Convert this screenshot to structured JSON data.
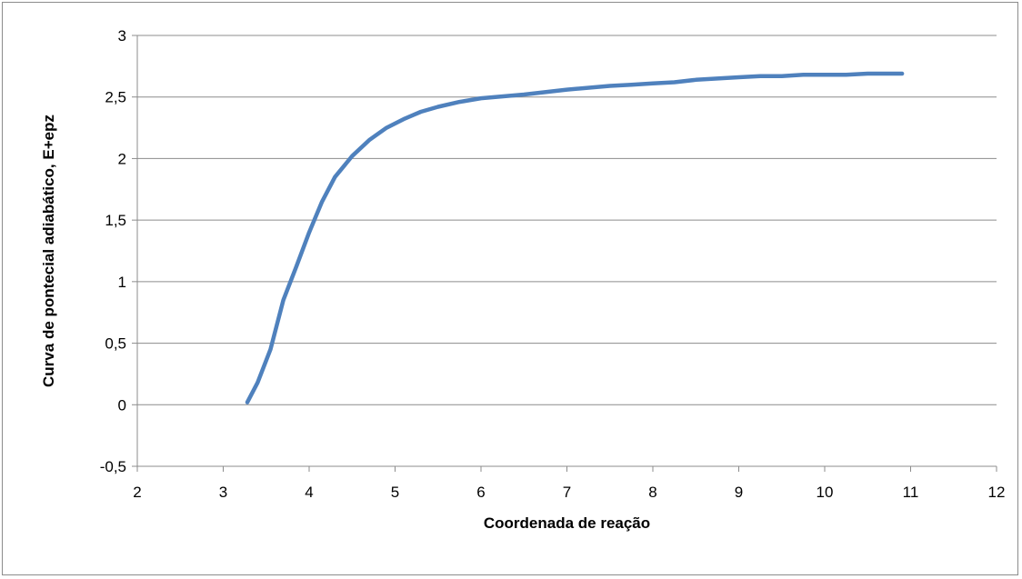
{
  "chart_data": {
    "type": "line",
    "title": "",
    "xlabel": "Coordenada de reação",
    "ylabel": "Curva de pontecial adiabático,  E+epz",
    "xlim": [
      2,
      12
    ],
    "ylim": [
      -0.5,
      3
    ],
    "xticks": [
      2,
      3,
      4,
      5,
      6,
      7,
      8,
      9,
      10,
      11,
      12
    ],
    "xtick_labels": [
      "2",
      "3",
      "4",
      "5",
      "6",
      "7",
      "8",
      "9",
      "10",
      "11",
      "12"
    ],
    "yticks": [
      -0.5,
      0,
      0.5,
      1,
      1.5,
      2,
      2.5,
      3
    ],
    "ytick_labels": [
      "-0,5",
      "0",
      "0,5",
      "1",
      "1,5",
      "2",
      "2,5",
      "3"
    ],
    "grid": "horizontal",
    "legend": "none",
    "series": [
      {
        "color": "#4f81bd",
        "x": [
          3.28,
          3.4,
          3.55,
          3.7,
          3.85,
          4.0,
          4.15,
          4.3,
          4.5,
          4.7,
          4.9,
          5.1,
          5.3,
          5.5,
          5.75,
          6.0,
          6.5,
          7.0,
          7.5,
          7.75,
          8.0,
          8.25,
          8.5,
          8.75,
          9.0,
          9.25,
          9.5,
          9.75,
          10.0,
          10.25,
          10.5,
          10.7,
          10.9
        ],
        "y": [
          0.02,
          0.18,
          0.45,
          0.85,
          1.12,
          1.4,
          1.65,
          1.85,
          2.02,
          2.15,
          2.25,
          2.32,
          2.38,
          2.42,
          2.46,
          2.49,
          2.52,
          2.56,
          2.59,
          2.6,
          2.61,
          2.62,
          2.64,
          2.65,
          2.66,
          2.67,
          2.67,
          2.68,
          2.68,
          2.68,
          2.69,
          2.69,
          2.69
        ]
      }
    ]
  }
}
